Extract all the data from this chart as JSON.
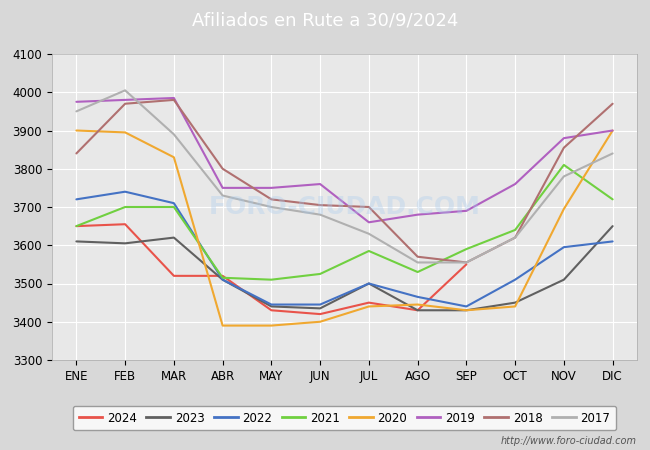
{
  "title": "Afiliados en Rute a 30/9/2024",
  "title_color": "#ffffff",
  "title_bg_color": "#5588cc",
  "xlabel": "",
  "ylabel": "",
  "ylim": [
    3300,
    4100
  ],
  "yticks": [
    3300,
    3400,
    3500,
    3600,
    3700,
    3800,
    3900,
    4000,
    4100
  ],
  "months": [
    "ENE",
    "FEB",
    "MAR",
    "ABR",
    "MAY",
    "JUN",
    "JUL",
    "AGO",
    "SEP",
    "OCT",
    "NOV",
    "DIC"
  ],
  "series": {
    "2024": {
      "color": "#e8534a",
      "data": [
        3650,
        3655,
        3520,
        3520,
        3430,
        3420,
        3450,
        3430,
        3550,
        null,
        null,
        null
      ]
    },
    "2023": {
      "color": "#606060",
      "data": [
        3610,
        3605,
        3620,
        3510,
        3440,
        3435,
        3500,
        3430,
        3430,
        3450,
        3510,
        3650
      ]
    },
    "2022": {
      "color": "#4472c4",
      "data": [
        3720,
        3740,
        3710,
        3510,
        3445,
        3445,
        3500,
        3465,
        3440,
        3510,
        3595,
        3610
      ]
    },
    "2021": {
      "color": "#70d040",
      "data": [
        3650,
        3700,
        3700,
        3515,
        3510,
        3525,
        3585,
        3530,
        3590,
        3640,
        3810,
        3720
      ]
    },
    "2020": {
      "color": "#f0a830",
      "data": [
        3900,
        3895,
        3830,
        3390,
        3390,
        3400,
        3440,
        3445,
        3430,
        3440,
        3695,
        3900
      ]
    },
    "2019": {
      "color": "#b060c0",
      "data": [
        3975,
        3980,
        3985,
        3750,
        3750,
        3760,
        3660,
        3680,
        3690,
        3760,
        3880,
        3900
      ]
    },
    "2018": {
      "color": "#b07070",
      "data": [
        3840,
        3970,
        3980,
        3800,
        3720,
        3705,
        3700,
        3570,
        3555,
        3620,
        3855,
        3970
      ]
    },
    "2017": {
      "color": "#b0b0b0",
      "data": [
        3950,
        4005,
        3890,
        3730,
        3700,
        3680,
        3630,
        3555,
        3555,
        3620,
        3780,
        3840
      ]
    }
  },
  "legend_order": [
    "2024",
    "2023",
    "2022",
    "2021",
    "2020",
    "2019",
    "2018",
    "2017"
  ],
  "watermark": "http://www.foro-ciudad.com",
  "fig_bg_color": "#d8d8d8",
  "plot_bg_color": "#e8e8e8",
  "grid_color": "#ffffff"
}
